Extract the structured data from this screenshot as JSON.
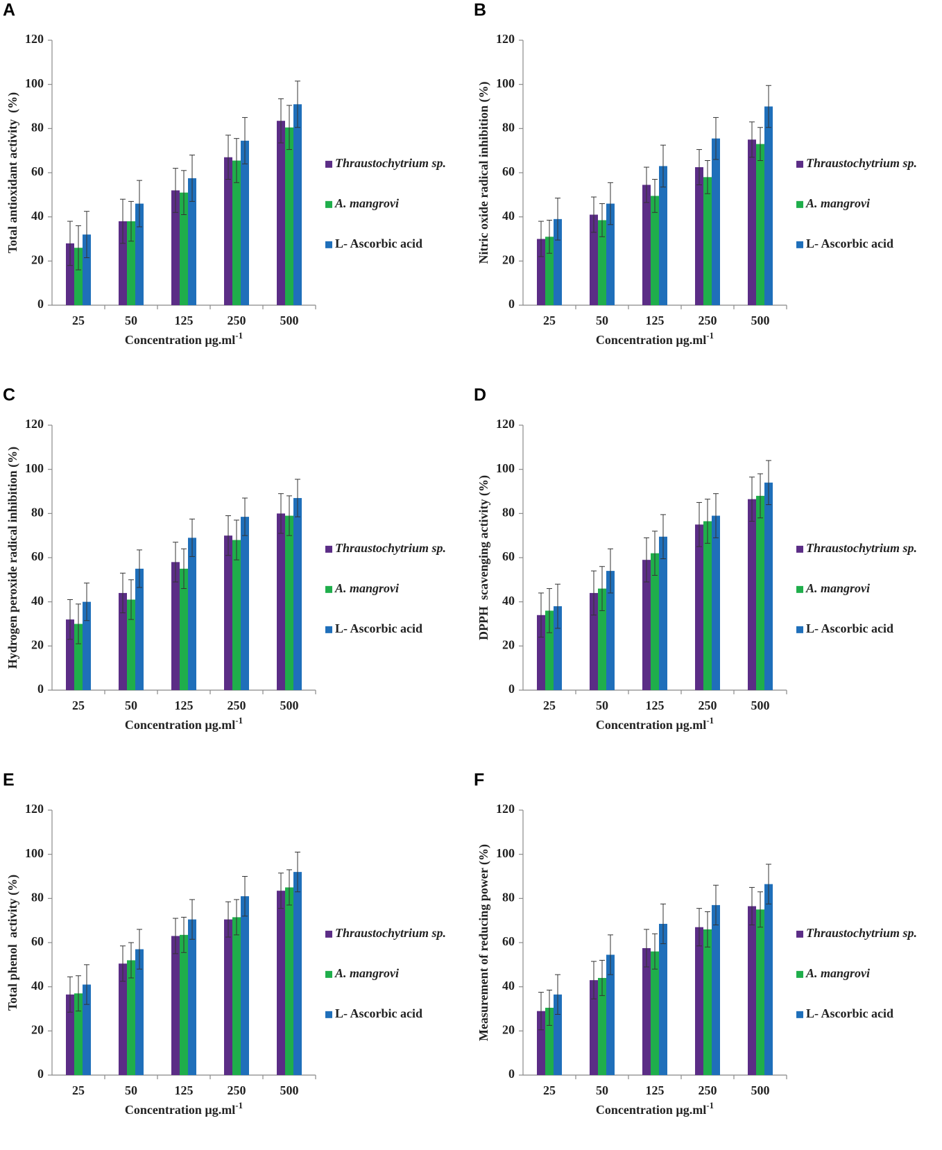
{
  "chart_data": [
    {
      "type": "bar",
      "panel": "A",
      "y_label": "Total antioxidant activity  (%)",
      "x_label": {
        "text": "Concentration µg.ml",
        "superscript": "-1"
      },
      "categories": [
        "25",
        "50",
        "125",
        "250",
        "500"
      ],
      "series": [
        {
          "name": "Thraustochytrium sp.",
          "color": "#5b2d86",
          "font_style": "italic",
          "values": [
            28,
            38,
            52,
            67,
            83.5
          ],
          "errors": [
            10,
            10,
            10,
            10,
            10
          ]
        },
        {
          "name": "A. mangrovi",
          "color": "#1fae4b",
          "font_style": "italic",
          "values": [
            26,
            38,
            51,
            65.5,
            80.5
          ],
          "errors": [
            10,
            9,
            10,
            10,
            10
          ]
        },
        {
          "name": "L- Ascorbic acid",
          "color": "#1f6fba",
          "font_style": "normal",
          "values": [
            32,
            46,
            57.5,
            74.5,
            91
          ],
          "errors": [
            10.5,
            10.5,
            10.5,
            10.5,
            10.5
          ]
        }
      ],
      "ylim": [
        0,
        120
      ],
      "yticks": [
        0,
        20,
        40,
        60,
        80,
        100,
        120
      ]
    },
    {
      "type": "bar",
      "panel": "B",
      "y_label": "Nitric oxide radical inhibition (%)",
      "x_label": {
        "text": "Concentration µg.ml",
        "superscript": "-1"
      },
      "categories": [
        "25",
        "50",
        "125",
        "250",
        "500"
      ],
      "series": [
        {
          "name": "Thraustochytrium sp.",
          "color": "#5b2d86",
          "font_style": "italic",
          "values": [
            30,
            41,
            54.5,
            62.5,
            75
          ],
          "errors": [
            8,
            8,
            8,
            8,
            8
          ]
        },
        {
          "name": "A. mangrovi",
          "color": "#1fae4b",
          "font_style": "italic",
          "values": [
            31,
            38.5,
            49.5,
            58,
            73
          ],
          "errors": [
            7.5,
            7.5,
            7.5,
            7.5,
            7.5
          ]
        },
        {
          "name": "L- Ascorbic acid",
          "color": "#1f6fba",
          "font_style": "normal",
          "values": [
            39,
            46,
            63,
            75.5,
            90
          ],
          "errors": [
            9.5,
            9.5,
            9.5,
            9.5,
            9.5
          ]
        }
      ],
      "ylim": [
        0,
        120
      ],
      "yticks": [
        0,
        20,
        40,
        60,
        80,
        100,
        120
      ]
    },
    {
      "type": "bar",
      "panel": "C",
      "y_label": "Hydrogen peroxide radical inhibition (%)",
      "x_label": {
        "text": "Concentration µg.ml",
        "superscript": "-1"
      },
      "categories": [
        "25",
        "50",
        "125",
        "250",
        "500"
      ],
      "series": [
        {
          "name": "Thraustochytrium sp.",
          "color": "#5b2d86",
          "font_style": "italic",
          "values": [
            32,
            44,
            58,
            70,
            80
          ],
          "errors": [
            9,
            9,
            9,
            9,
            9
          ]
        },
        {
          "name": "A. mangrovi",
          "color": "#1fae4b",
          "font_style": "italic",
          "values": [
            30,
            41,
            55,
            68,
            79
          ],
          "errors": [
            9,
            9,
            9,
            9,
            9
          ]
        },
        {
          "name": "L- Ascorbic acid",
          "color": "#1f6fba",
          "font_style": "normal",
          "values": [
            40,
            55,
            69,
            78.5,
            87
          ],
          "errors": [
            8.5,
            8.5,
            8.5,
            8.5,
            8.5
          ]
        }
      ],
      "ylim": [
        0,
        120
      ],
      "yticks": [
        0,
        20,
        40,
        60,
        80,
        100,
        120
      ]
    },
    {
      "type": "bar",
      "panel": "D",
      "y_label": "DPPH  scavenging activity (%)",
      "x_label": {
        "text": "Concentration µg.ml",
        "superscript": "-1"
      },
      "categories": [
        "25",
        "50",
        "125",
        "250",
        "500"
      ],
      "series": [
        {
          "name": "Thraustochytrium sp.",
          "color": "#5b2d86",
          "font_style": "italic",
          "values": [
            34,
            44,
            59,
            75,
            86.5
          ],
          "errors": [
            10,
            10,
            10,
            10,
            10
          ]
        },
        {
          "name": "A. mangrovi",
          "color": "#1fae4b",
          "font_style": "italic",
          "values": [
            36,
            46,
            62,
            76.5,
            88
          ],
          "errors": [
            10,
            10,
            10,
            10,
            10
          ]
        },
        {
          "name": "L- Ascorbic acid",
          "color": "#1f6fba",
          "font_style": "normal",
          "values": [
            38,
            54,
            69.5,
            79,
            94
          ],
          "errors": [
            10,
            10,
            10,
            10,
            10
          ]
        }
      ],
      "ylim": [
        0,
        120
      ],
      "yticks": [
        0,
        20,
        40,
        60,
        80,
        100,
        120
      ]
    },
    {
      "type": "bar",
      "panel": "E",
      "y_label": "Total phenol  activity (%)",
      "x_label": {
        "text": "Concentration µg.ml",
        "superscript": "-1"
      },
      "categories": [
        "25",
        "50",
        "125",
        "250",
        "500"
      ],
      "series": [
        {
          "name": "Thraustochytrium sp.",
          "color": "#5b2d86",
          "font_style": "italic",
          "values": [
            36.5,
            50.5,
            63,
            70.5,
            83.5
          ],
          "errors": [
            8,
            8,
            8,
            8,
            8
          ]
        },
        {
          "name": "A. mangrovi",
          "color": "#1fae4b",
          "font_style": "italic",
          "values": [
            37,
            52,
            63.5,
            71.5,
            85
          ],
          "errors": [
            8,
            8,
            8,
            8,
            8
          ]
        },
        {
          "name": "L- Ascorbic acid",
          "color": "#1f6fba",
          "font_style": "normal",
          "values": [
            41,
            57,
            70.5,
            81,
            92
          ],
          "errors": [
            9,
            9,
            9,
            9,
            9
          ]
        }
      ],
      "ylim": [
        0,
        120
      ],
      "yticks": [
        0,
        20,
        40,
        60,
        80,
        100,
        120
      ]
    },
    {
      "type": "bar",
      "panel": "F",
      "y_label": "Measurement of reducing power (%)",
      "x_label": {
        "text": "Concentration µg.ml",
        "superscript": "-1"
      },
      "categories": [
        "25",
        "50",
        "125",
        "250",
        "500"
      ],
      "series": [
        {
          "name": "Thraustochytrium sp.",
          "color": "#5b2d86",
          "font_style": "italic",
          "values": [
            29,
            43,
            57.5,
            67,
            76.5
          ],
          "errors": [
            8.5,
            8.5,
            8.5,
            8.5,
            8.5
          ]
        },
        {
          "name": "A. mangrovi",
          "color": "#1fae4b",
          "font_style": "italic",
          "values": [
            30.5,
            44,
            56,
            66,
            75
          ],
          "errors": [
            8,
            8,
            8,
            8,
            8
          ]
        },
        {
          "name": "L- Ascorbic acid",
          "color": "#1f6fba",
          "font_style": "normal",
          "values": [
            36.5,
            54.5,
            68.5,
            77,
            86.5
          ],
          "errors": [
            9,
            9,
            9,
            9,
            9
          ]
        }
      ],
      "ylim": [
        0,
        120
      ],
      "yticks": [
        0,
        20,
        40,
        60,
        80,
        100,
        120
      ]
    }
  ]
}
